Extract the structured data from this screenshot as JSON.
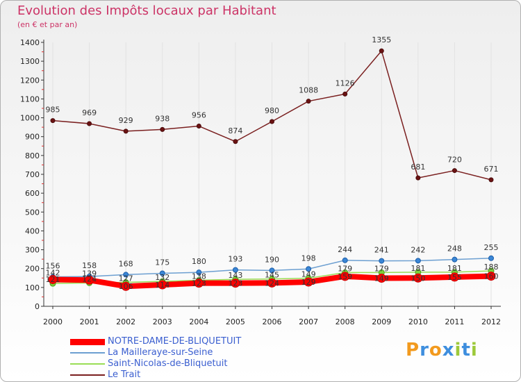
{
  "header": {
    "title": "Evolution des Impôts locaux par Habitant",
    "subtitle": "(en € et par an)"
  },
  "logo": {
    "text": "Proxiti",
    "letters": [
      {
        "ch": "P",
        "color": "#f29a1e"
      },
      {
        "ch": "r",
        "color": "#3e8ede"
      },
      {
        "ch": "o",
        "color": "#f29a1e"
      },
      {
        "ch": "x",
        "color": "#3e8ede"
      },
      {
        "ch": "i",
        "color": "#9dc93b"
      },
      {
        "ch": "t",
        "color": "#3e8ede"
      },
      {
        "ch": "i",
        "color": "#9dc93b"
      }
    ]
  },
  "chart_data": {
    "type": "line",
    "title": "Evolution des Impôts locaux par Habitant",
    "subtitle": "(en € et par an)",
    "xlabel": "",
    "ylabel": "",
    "ylim": [
      0,
      1400
    ],
    "yticks": [
      0,
      100,
      200,
      300,
      400,
      500,
      600,
      700,
      800,
      900,
      1000,
      1100,
      1200,
      1300,
      1400
    ],
    "categories": [
      "2000",
      "2001",
      "2002",
      "2003",
      "2004",
      "2005",
      "2006",
      "2007",
      "2008",
      "2009",
      "2010",
      "2011",
      "2012"
    ],
    "legend_position": "bottom-left",
    "series": [
      {
        "name": "NOTRE-DAME-DE-BLIQUETUIT",
        "color": "#ff0000",
        "width": "thick",
        "values": [
          142,
          139,
          106,
          114,
          123,
          123,
          124,
          129,
          159,
          149,
          150,
          155,
          160
        ],
        "labels": [
          "142",
          "139",
          "106",
          "114",
          "123",
          "123",
          "124",
          "129",
          "159",
          "149",
          "150",
          "155",
          "160"
        ]
      },
      {
        "name": "La Mailleraye-sur-Seine",
        "color": "#6c9fd1",
        "width": "thin",
        "values": [
          156,
          158,
          168,
          175,
          180,
          193,
          190,
          198,
          244,
          241,
          242,
          248,
          255
        ],
        "labels": [
          "156",
          "158",
          "168",
          "175",
          "180",
          "193",
          "190",
          "198",
          "244",
          "241",
          "242",
          "248",
          "255"
        ]
      },
      {
        "name": "Saint-Nicolas-de-Bliquetuit",
        "color": "#99dd55",
        "width": "thin",
        "values": [
          121,
          124,
          127,
          132,
          138,
          143,
          145,
          149,
          179,
          179,
          181,
          181,
          188
        ],
        "labels": [
          "121",
          "124",
          "127",
          "132",
          "138",
          "143",
          "145",
          "149",
          "179",
          "179",
          "181",
          "181",
          "188"
        ]
      },
      {
        "name": "Le Trait",
        "color": "#7a1f1f",
        "width": "thin",
        "values": [
          985,
          969,
          929,
          938,
          956,
          874,
          980,
          1088,
          1126,
          1355,
          681,
          720,
          671
        ],
        "labels": [
          "985",
          "969",
          "929",
          "938",
          "956",
          "874",
          "980",
          "1088",
          "1126",
          "1355",
          "681",
          "720",
          "671"
        ]
      }
    ]
  }
}
